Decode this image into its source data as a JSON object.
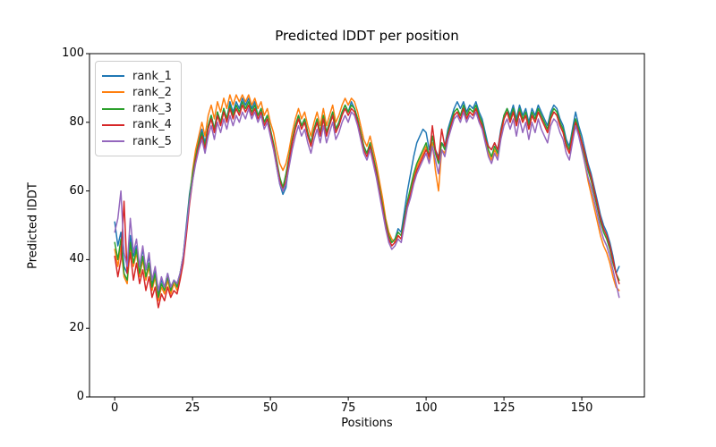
{
  "figure": {
    "title": "Predicted lDDT per position",
    "xlabel": "Positions",
    "ylabel": "Predicted lDDT"
  },
  "legend": {
    "entries": [
      {
        "label": "rank_1",
        "color": "#1f77b4"
      },
      {
        "label": "rank_2",
        "color": "#ff7f0e"
      },
      {
        "label": "rank_3",
        "color": "#2ca02c"
      },
      {
        "label": "rank_4",
        "color": "#d62728"
      },
      {
        "label": "rank_5",
        "color": "#9467bd"
      }
    ]
  },
  "chart_data": {
    "type": "line",
    "title": "Predicted lDDT per position",
    "xlabel": "Positions",
    "ylabel": "Predicted lDDT",
    "xlim": [
      -8.1,
      170.1
    ],
    "ylim": [
      0,
      100
    ],
    "x_ticks": [
      0,
      25,
      50,
      75,
      100,
      125,
      150
    ],
    "y_ticks": [
      0,
      20,
      40,
      60,
      80,
      100
    ],
    "grid": false,
    "legend_position": "upper-left",
    "x_start": 0,
    "x_step": 1,
    "n_points": 163,
    "line_width": 1.5,
    "series": [
      {
        "name": "rank_1",
        "color": "#1f77b4",
        "values": [
          51,
          44,
          48,
          38,
          36,
          47,
          41,
          44,
          38,
          43,
          37,
          41,
          33,
          37,
          30,
          34,
          32,
          36,
          32,
          34,
          33,
          36,
          41,
          50,
          59,
          65,
          71,
          75,
          78,
          74,
          79,
          82,
          78,
          83,
          80,
          84,
          81,
          86,
          83,
          86,
          84,
          87,
          85,
          87,
          84,
          86,
          82,
          84,
          80,
          82,
          78,
          73,
          67,
          62,
          59,
          61,
          68,
          74,
          79,
          82,
          79,
          81,
          77,
          74,
          78,
          81,
          77,
          82,
          77,
          80,
          83,
          78,
          80,
          83,
          85,
          83,
          86,
          84,
          81,
          77,
          73,
          71,
          74,
          70,
          66,
          61,
          56,
          51,
          47,
          45,
          46,
          49,
          48,
          54,
          60,
          65,
          70,
          74,
          76,
          78,
          77,
          72,
          76,
          72,
          70,
          74,
          73,
          78,
          81,
          84,
          86,
          84,
          86,
          83,
          85,
          84,
          86,
          83,
          81,
          77,
          73,
          72,
          74,
          72,
          78,
          82,
          84,
          82,
          85,
          81,
          85,
          82,
          84,
          80,
          84,
          82,
          85,
          83,
          81,
          79,
          83,
          85,
          84,
          81,
          79,
          75,
          73,
          78,
          83,
          79,
          76,
          72,
          68,
          65,
          61,
          57,
          53,
          50,
          48,
          45,
          41,
          36,
          38
        ]
      },
      {
        "name": "rank_2",
        "color": "#ff7f0e",
        "values": [
          43,
          38,
          44,
          35,
          33,
          44,
          38,
          42,
          35,
          40,
          34,
          38,
          31,
          35,
          28,
          32,
          30,
          34,
          30,
          33,
          31,
          35,
          40,
          48,
          57,
          66,
          72,
          76,
          80,
          76,
          82,
          85,
          81,
          86,
          83,
          87,
          84,
          88,
          85,
          88,
          86,
          88,
          86,
          88,
          85,
          87,
          84,
          86,
          82,
          84,
          80,
          77,
          72,
          68,
          66,
          68,
          72,
          77,
          81,
          84,
          81,
          83,
          79,
          76,
          80,
          83,
          79,
          84,
          79,
          82,
          85,
          80,
          82,
          85,
          87,
          85,
          87,
          86,
          83,
          79,
          75,
          73,
          76,
          72,
          68,
          63,
          58,
          52,
          48,
          46,
          45,
          47,
          46,
          51,
          56,
          60,
          64,
          67,
          69,
          71,
          73,
          69,
          74,
          66,
          60,
          72,
          71,
          76,
          79,
          82,
          83,
          82,
          84,
          81,
          83,
          82,
          84,
          81,
          79,
          75,
          71,
          69,
          72,
          70,
          76,
          81,
          83,
          80,
          83,
          79,
          83,
          80,
          82,
          78,
          82,
          80,
          83,
          81,
          79,
          77,
          81,
          83,
          82,
          79,
          77,
          73,
          71,
          76,
          80,
          77,
          73,
          68,
          63,
          59,
          55,
          51,
          47,
          44,
          42,
          39,
          35,
          32,
          31
        ]
      },
      {
        "name": "rank_3",
        "color": "#2ca02c",
        "values": [
          45,
          40,
          46,
          36,
          34,
          45,
          39,
          43,
          36,
          41,
          35,
          39,
          32,
          36,
          29,
          33,
          31,
          35,
          31,
          34,
          32,
          36,
          41,
          49,
          58,
          65,
          70,
          74,
          77,
          73,
          79,
          82,
          78,
          83,
          80,
          84,
          81,
          85,
          82,
          85,
          83,
          86,
          84,
          86,
          83,
          85,
          82,
          84,
          80,
          82,
          78,
          74,
          69,
          64,
          61,
          65,
          70,
          75,
          79,
          82,
          79,
          81,
          77,
          74,
          78,
          81,
          77,
          82,
          77,
          80,
          83,
          78,
          80,
          83,
          85,
          83,
          85,
          84,
          81,
          77,
          73,
          71,
          74,
          70,
          66,
          61,
          56,
          51,
          47,
          45,
          46,
          48,
          47,
          52,
          57,
          61,
          65,
          68,
          70,
          72,
          74,
          70,
          76,
          71,
          68,
          74,
          72,
          77,
          80,
          83,
          84,
          82,
          85,
          82,
          84,
          83,
          85,
          82,
          80,
          76,
          72,
          70,
          73,
          71,
          77,
          82,
          84,
          81,
          84,
          80,
          84,
          81,
          83,
          79,
          83,
          81,
          84,
          82,
          80,
          78,
          82,
          84,
          83,
          80,
          78,
          74,
          72,
          77,
          81,
          78,
          74,
          70,
          66,
          63,
          59,
          55,
          51,
          48,
          46,
          43,
          39,
          36,
          34
        ]
      },
      {
        "name": "rank_4",
        "color": "#d62728",
        "values": [
          41,
          35,
          40,
          57,
          36,
          42,
          34,
          39,
          33,
          37,
          31,
          35,
          29,
          32,
          26,
          30,
          28,
          32,
          29,
          31,
          30,
          34,
          39,
          47,
          56,
          63,
          69,
          73,
          76,
          72,
          78,
          81,
          77,
          82,
          79,
          83,
          80,
          84,
          81,
          84,
          82,
          85,
          83,
          85,
          82,
          84,
          81,
          83,
          79,
          81,
          77,
          73,
          68,
          63,
          60,
          63,
          69,
          74,
          78,
          81,
          78,
          80,
          76,
          73,
          77,
          80,
          76,
          81,
          76,
          79,
          82,
          77,
          79,
          82,
          84,
          82,
          84,
          83,
          80,
          76,
          72,
          70,
          73,
          69,
          65,
          60,
          55,
          50,
          46,
          44,
          45,
          47,
          46,
          51,
          56,
          59,
          63,
          66,
          68,
          70,
          72,
          70,
          79,
          72,
          69,
          78,
          73,
          76,
          79,
          82,
          83,
          81,
          84,
          81,
          83,
          82,
          84,
          81,
          79,
          75,
          73,
          72,
          74,
          72,
          77,
          81,
          83,
          80,
          83,
          79,
          83,
          80,
          82,
          78,
          82,
          80,
          83,
          81,
          79,
          77,
          81,
          83,
          82,
          79,
          77,
          73,
          71,
          76,
          80,
          77,
          74,
          71,
          67,
          64,
          60,
          56,
          52,
          49,
          47,
          44,
          40,
          36,
          33
        ]
      },
      {
        "name": "rank_5",
        "color": "#9467bd",
        "values": [
          48,
          52,
          60,
          42,
          38,
          52,
          42,
          46,
          38,
          44,
          37,
          42,
          34,
          38,
          31,
          35,
          32,
          36,
          32,
          34,
          33,
          36,
          41,
          49,
          57,
          63,
          68,
          72,
          75,
          71,
          76,
          79,
          75,
          80,
          77,
          81,
          78,
          82,
          79,
          82,
          80,
          83,
          81,
          84,
          81,
          83,
          80,
          82,
          78,
          80,
          76,
          72,
          67,
          62,
          60,
          62,
          67,
          72,
          76,
          79,
          76,
          78,
          74,
          71,
          75,
          78,
          74,
          79,
          74,
          77,
          80,
          75,
          77,
          80,
          82,
          80,
          83,
          82,
          79,
          75,
          71,
          69,
          72,
          68,
          64,
          59,
          54,
          49,
          45,
          43,
          44,
          46,
          45,
          50,
          55,
          58,
          62,
          65,
          67,
          69,
          71,
          68,
          73,
          69,
          65,
          72,
          70,
          75,
          78,
          81,
          82,
          80,
          83,
          80,
          82,
          81,
          83,
          80,
          78,
          74,
          70,
          68,
          71,
          69,
          75,
          79,
          81,
          78,
          81,
          76,
          81,
          77,
          80,
          75,
          80,
          77,
          81,
          78,
          76,
          74,
          79,
          81,
          80,
          77,
          75,
          71,
          69,
          74,
          79,
          76,
          72,
          68,
          64,
          61,
          57,
          53,
          49,
          46,
          44,
          41,
          37,
          33,
          29
        ]
      }
    ]
  }
}
